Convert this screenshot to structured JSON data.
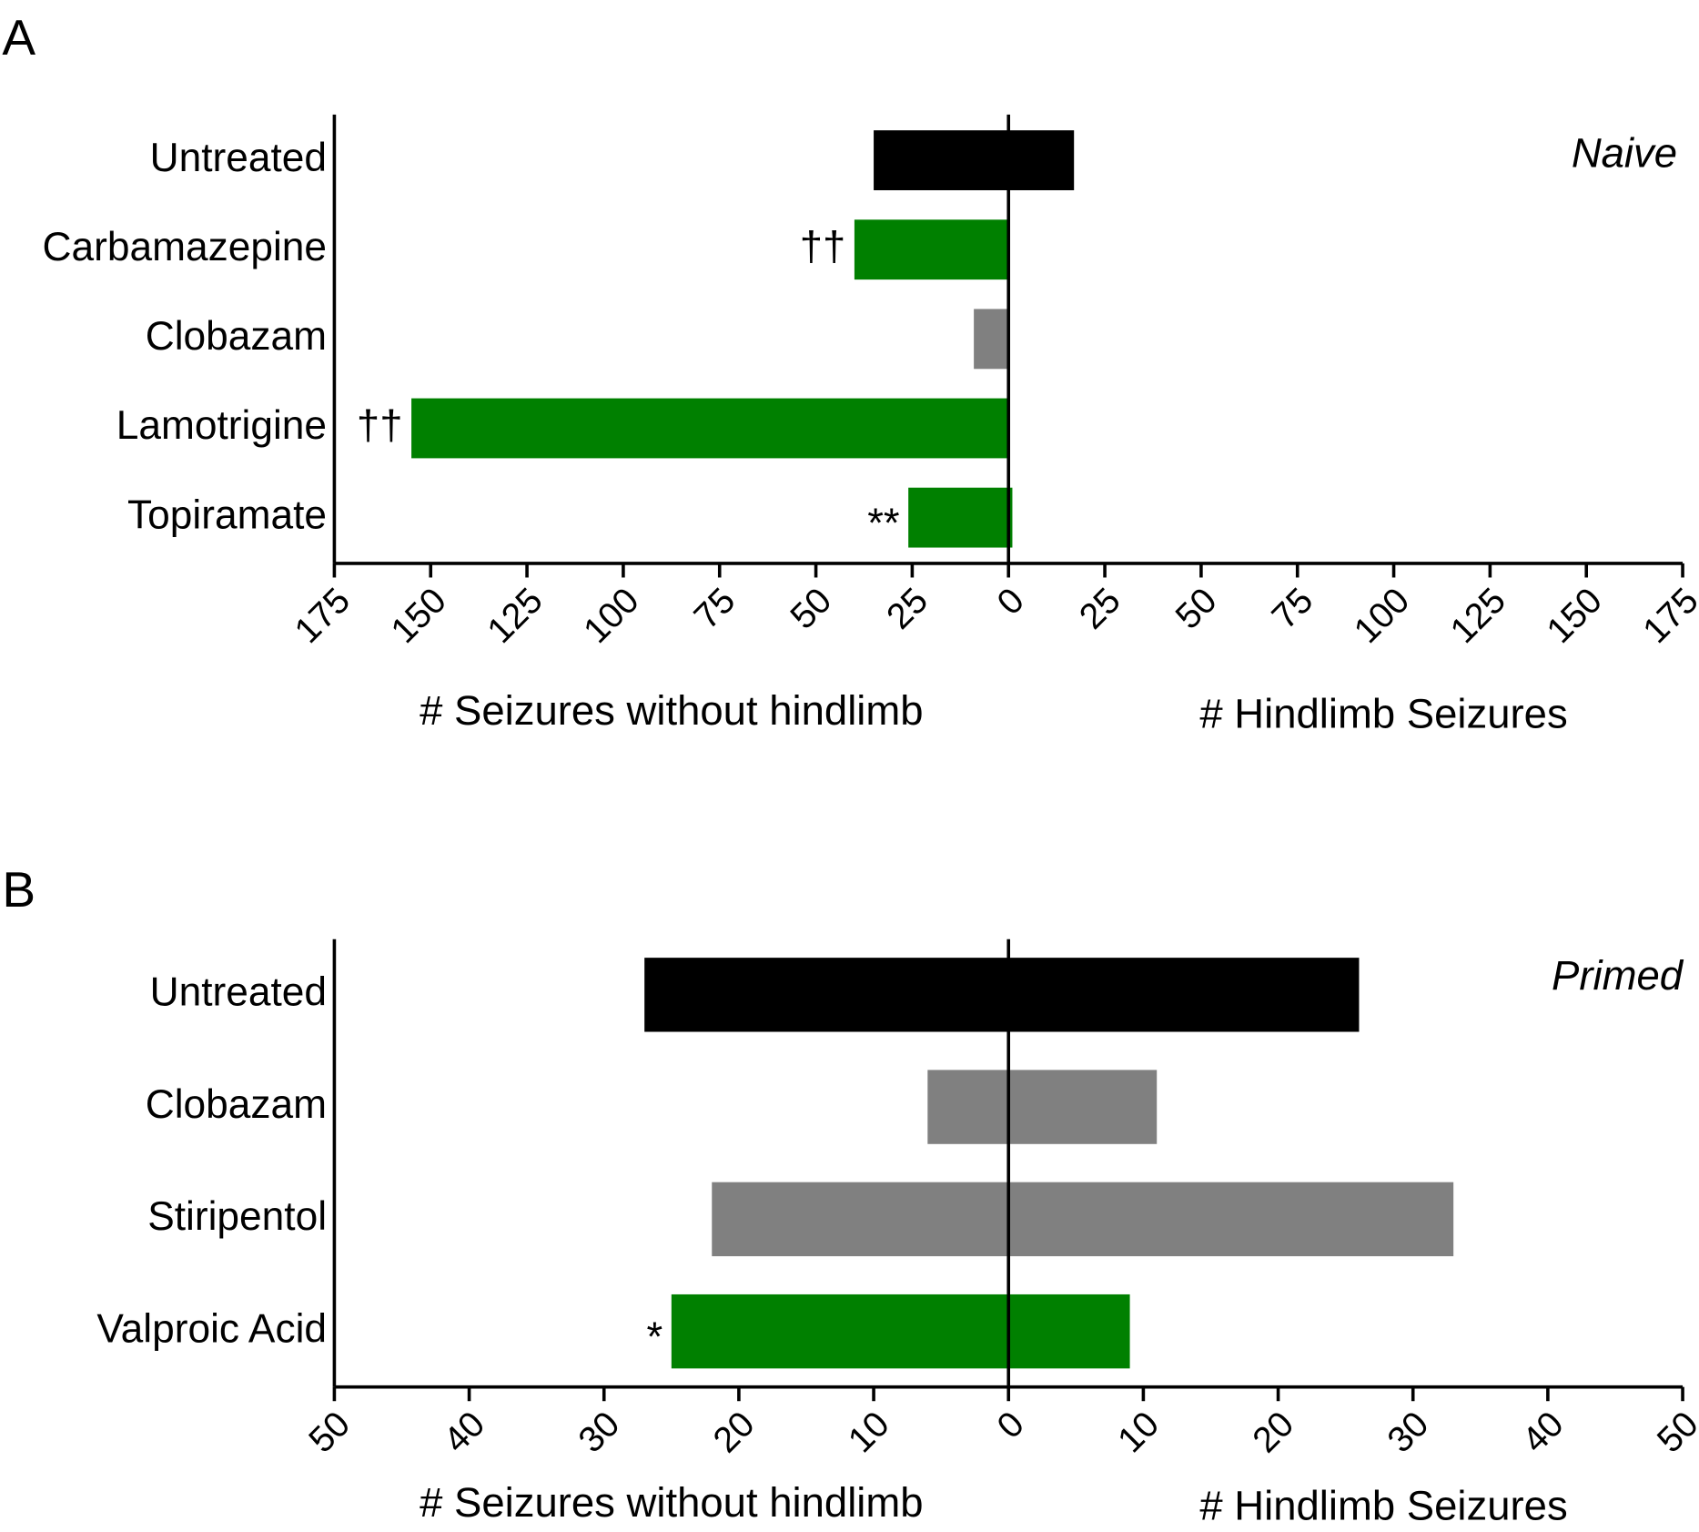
{
  "chart_data": [
    {
      "type": "butterfly",
      "panel": "A",
      "subtitle": "Naive",
      "categories": [
        "Untreated",
        "Carbamazepine",
        "Clobazam",
        "Lamotrigine",
        "Topiramate"
      ],
      "series": [
        {
          "name": "# Seizures without hindlimb",
          "values": [
            35,
            40,
            9,
            155,
            26
          ]
        },
        {
          "name": "# Hindlimb Seizures",
          "values": [
            17,
            0,
            0,
            0,
            1
          ]
        }
      ],
      "colors": [
        "#000000",
        "#008000",
        "#808080",
        "#008000",
        "#008000"
      ],
      "annotations": [
        {
          "category": 1,
          "text": "††"
        },
        {
          "category": 3,
          "text": "††"
        },
        {
          "category": 4,
          "text": "**"
        }
      ],
      "xlim": [
        0,
        175
      ],
      "xticks": [
        0,
        25,
        50,
        75,
        100,
        125,
        150,
        175
      ]
    },
    {
      "type": "butterfly",
      "panel": "B",
      "subtitle": "Primed",
      "categories": [
        "Untreated",
        "Clobazam",
        "Stiripentol",
        "Valproic Acid"
      ],
      "series": [
        {
          "name": "# Seizures without hindlimb",
          "values": [
            27,
            6,
            22,
            25
          ]
        },
        {
          "name": "# Hindlimb Seizures",
          "values": [
            26,
            11,
            33,
            9
          ]
        }
      ],
      "colors": [
        "#000000",
        "#808080",
        "#808080",
        "#008000"
      ],
      "annotations": [
        {
          "category": 3,
          "text": "*"
        }
      ],
      "xlim": [
        0,
        50
      ],
      "xticks": [
        0,
        10,
        20,
        30,
        40,
        50
      ]
    }
  ]
}
